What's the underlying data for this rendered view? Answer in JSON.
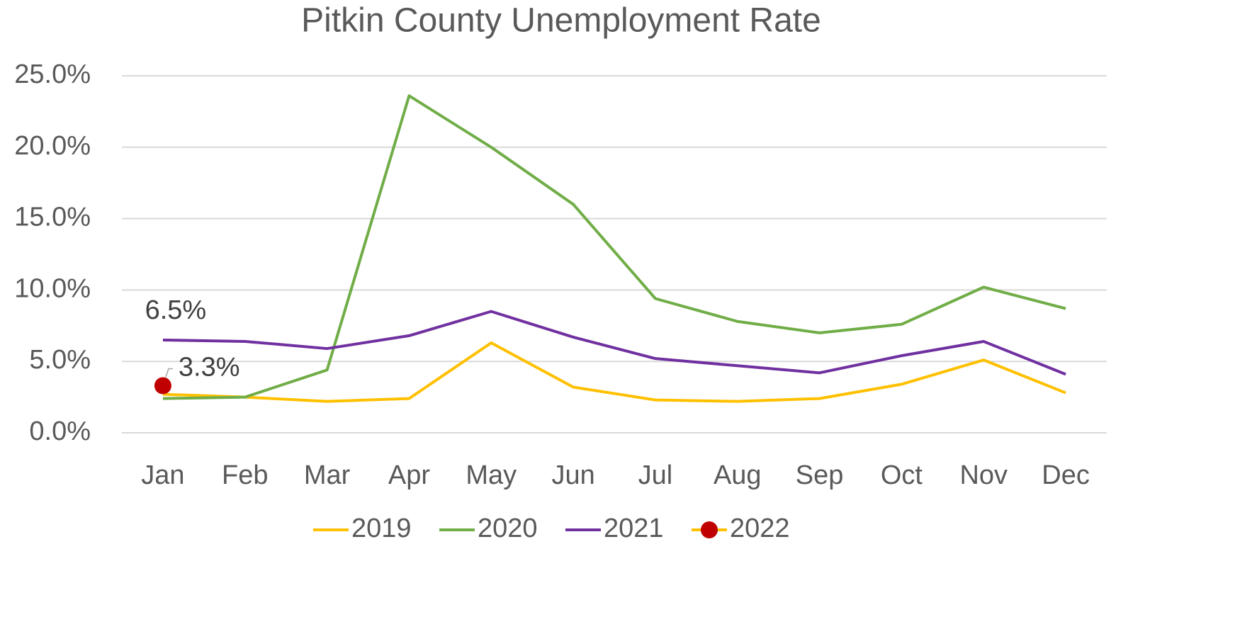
{
  "chart_data": {
    "type": "line",
    "title": "Pitkin County Unemployment Rate",
    "categories": [
      "Jan",
      "Feb",
      "Mar",
      "Apr",
      "May",
      "Jun",
      "Jul",
      "Aug",
      "Sep",
      "Oct",
      "Nov",
      "Dec"
    ],
    "series": [
      {
        "name": "2019",
        "color": "#ffc000",
        "values": [
          2.7,
          2.5,
          2.2,
          2.4,
          6.3,
          3.2,
          2.3,
          2.2,
          2.4,
          3.4,
          5.1,
          2.8
        ]
      },
      {
        "name": "2020",
        "color": "#70ad47",
        "values": [
          2.4,
          2.5,
          4.4,
          23.6,
          20.0,
          16.0,
          9.4,
          7.8,
          7.0,
          7.6,
          10.2,
          8.7
        ]
      },
      {
        "name": "2021",
        "color": "#7030a0",
        "values": [
          6.5,
          6.4,
          5.9,
          6.8,
          8.5,
          6.7,
          5.2,
          4.7,
          4.2,
          5.4,
          6.4,
          4.1
        ],
        "value_labels": [
          "6.5%",
          null,
          null,
          null,
          null,
          null,
          null,
          null,
          null,
          null,
          null,
          null
        ]
      },
      {
        "name": "2022",
        "color": "#ffc000",
        "marker_color": "#c00000",
        "values": [
          3.3,
          null,
          null,
          null,
          null,
          null,
          null,
          null,
          null,
          null,
          null,
          null
        ],
        "value_labels": [
          "3.3%",
          null,
          null,
          null,
          null,
          null,
          null,
          null,
          null,
          null,
          null,
          null
        ]
      }
    ],
    "ylim": [
      0,
      25
    ],
    "yticks": [
      {
        "value": 0,
        "label": "0.0%"
      },
      {
        "value": 5,
        "label": "5.0%"
      },
      {
        "value": 10,
        "label": "10.0%"
      },
      {
        "value": 15,
        "label": "15.0%"
      },
      {
        "value": 20,
        "label": "20.0%"
      },
      {
        "value": 25,
        "label": "25.0%"
      }
    ],
    "grid": true,
    "legend": "bottom"
  }
}
